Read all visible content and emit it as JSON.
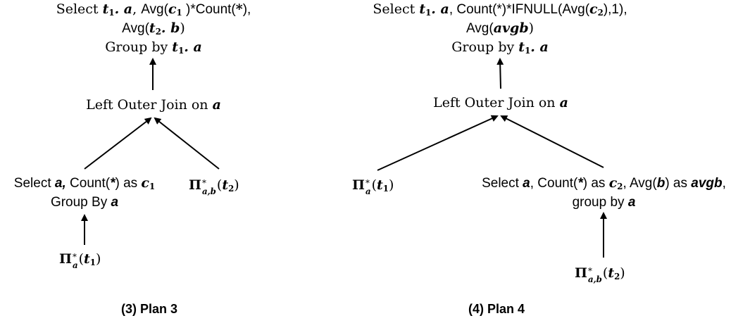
{
  "plan3": {
    "top": {
      "select_kw": "Select ",
      "t1": "t",
      "t1_sub": "1",
      "dot_a": ". a",
      "comma1": ", ",
      "avg_open": "Avg(",
      "c1": "c",
      "c1_sub": "1",
      "avg_close_count": " )*Count(",
      "star": "*",
      "count_close": "),",
      "avg2_open": "Avg(",
      "t2": "t",
      "t2_sub": "2",
      "dot_b": ". b",
      "avg2_close": ")",
      "group_kw": "Group by ",
      "g_t": "t",
      "g_sub": "1",
      "g_dot_a": ". a"
    },
    "join": {
      "label": "Left Outer Join on ",
      "attr": "a"
    },
    "left": {
      "select_kw": "Select ",
      "a": "a,",
      "count": " Count(",
      "star": "*",
      "as": ") as ",
      "c": "c",
      "c_sub": "1",
      "group_kw": "Group By ",
      "g_a": "a"
    },
    "right_pi": {
      "pi": "Π",
      "sup": "*",
      "sub": "a,b",
      "arg_open": "(",
      "t": "t",
      "t_sub": "2",
      "arg_close": ")"
    },
    "bottom_pi": {
      "pi": "Π",
      "sup": "*",
      "sub": "a",
      "arg_open": "(",
      "t": "t",
      "t_sub": "1",
      "arg_close": ")"
    },
    "caption": "(3) Plan 3"
  },
  "plan4": {
    "top": {
      "select_kw": "Select ",
      "t1": "t",
      "t1_sub": "1",
      "dot_a": ". a",
      "rest1": ", Count(*)*IFNULL(Avg(",
      "c2": "c",
      "c2_sub": "2",
      "rest1_close": "),1),",
      "avg_open": "Avg(",
      "avgb": "avgb",
      "avg_close": ")",
      "group_kw": "Group by ",
      "g_t": "t",
      "g_sub": "1",
      "g_dot_a": ". a"
    },
    "join": {
      "label": "Left Outer Join on ",
      "attr": "a"
    },
    "left_pi": {
      "pi": "Π",
      "sup": "*",
      "sub": "a",
      "arg_open": "(",
      "t": "t",
      "t_sub": "1",
      "arg_close": ")"
    },
    "right": {
      "select_kw": "Select ",
      "a": "a",
      "count": ",  Count(",
      "star": "*",
      "as": ") as ",
      "c": "c",
      "c_sub": "2",
      "avg": ", Avg(",
      "b": "b",
      "as2": ") as ",
      "avgb": "avgb",
      "comma": ",",
      "group_kw": "group by ",
      "g_a": "a"
    },
    "bottom_pi": {
      "pi": "Π",
      "sup": "*",
      "sub": "a,b",
      "arg_open": "(",
      "t": "t",
      "t_sub": "2",
      "arg_close": ")"
    },
    "caption": "(4) Plan 4"
  }
}
